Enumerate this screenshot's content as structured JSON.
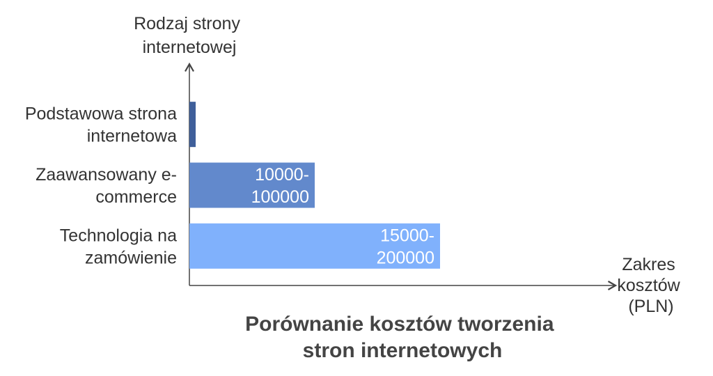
{
  "chart_data": {
    "type": "bar",
    "orientation": "horizontal",
    "title": [
      "Porównanie kosztów tworzenia",
      "stron internetowych"
    ],
    "ylabel": [
      "Rodzaj strony",
      "internetowej"
    ],
    "xlabel": [
      "Zakres",
      "kosztów",
      "(PLN)"
    ],
    "categories": [
      {
        "lines": [
          "Podstawowa strona",
          "internetowa"
        ]
      },
      {
        "lines": [
          "Zaawansowany e-",
          "commerce"
        ]
      },
      {
        "lines": [
          "Technologia na",
          "zamówienie"
        ]
      }
    ],
    "ranges": [
      {
        "min": 0,
        "max": 5000,
        "label": []
      },
      {
        "min": 10000,
        "max": 100000,
        "label": [
          "10000-",
          "100000"
        ]
      },
      {
        "min": 15000,
        "max": 200000,
        "label": [
          "15000-",
          "200000"
        ]
      }
    ],
    "xlim": [
      0,
      340000
    ],
    "colors": [
      "#3f5f9a",
      "#6289cc",
      "#80b1fc"
    ],
    "axis_color": "#444444",
    "grid": false,
    "legend": "none"
  }
}
